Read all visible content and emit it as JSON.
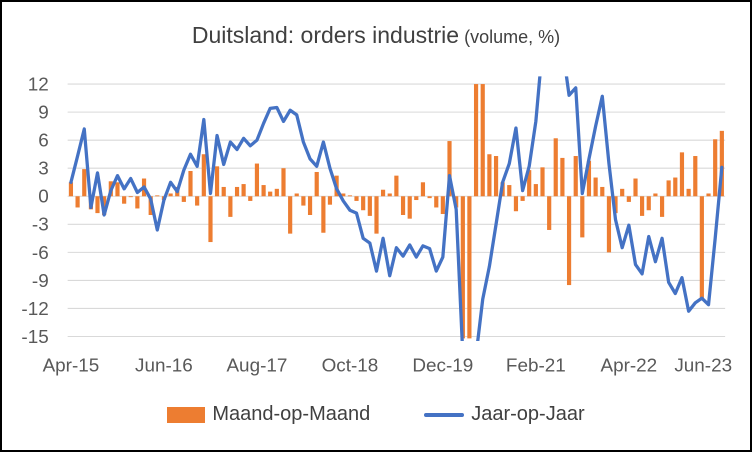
{
  "window": {
    "background": "#ffffff",
    "border_color": "#000000"
  },
  "chart": {
    "title_main": "Duitsland: orders industrie",
    "title_suffix": " (volume, %)"
  },
  "chart_data": {
    "type": "combo",
    "title": "Duitsland: orders industrie (volume, %)",
    "grid": "horizontal",
    "gridline_color": "#D9D9D9",
    "axis_text_color": "#595959",
    "categories": [
      "Apr-15",
      "May-15",
      "Jun-15",
      "Jul-15",
      "Aug-15",
      "Sep-15",
      "Oct-15",
      "Nov-15",
      "Dec-15",
      "Jan-16",
      "Feb-16",
      "Mar-16",
      "Apr-16",
      "May-16",
      "Jun-16",
      "Jul-16",
      "Aug-16",
      "Sep-16",
      "Oct-16",
      "Nov-16",
      "Dec-16",
      "Jan-17",
      "Feb-17",
      "Mar-17",
      "Apr-17",
      "May-17",
      "Jun-17",
      "Jul-17",
      "Aug-17",
      "Sep-17",
      "Oct-17",
      "Nov-17",
      "Dec-17",
      "Jan-18",
      "Feb-18",
      "Mar-18",
      "Apr-18",
      "May-18",
      "Jun-18",
      "Jul-18",
      "Aug-18",
      "Sep-18",
      "Oct-18",
      "Nov-18",
      "Dec-18",
      "Jan-19",
      "Feb-19",
      "Mar-19",
      "Apr-19",
      "May-19",
      "Jun-19",
      "Jul-19",
      "Aug-19",
      "Sep-19",
      "Oct-19",
      "Nov-19",
      "Dec-19",
      "Jan-20",
      "Feb-20",
      "Mar-20",
      "Apr-20",
      "May-20",
      "Jun-20",
      "Jul-20",
      "Aug-20",
      "Sep-20",
      "Oct-20",
      "Nov-20",
      "Dec-20",
      "Jan-21",
      "Feb-21",
      "Mar-21",
      "Apr-21",
      "May-21",
      "Jun-21",
      "Jul-21",
      "Aug-21",
      "Sep-21",
      "Oct-21",
      "Nov-21",
      "Dec-21",
      "Jan-22",
      "Feb-22",
      "Mar-22",
      "Apr-22",
      "May-22",
      "Jun-22",
      "Jul-22",
      "Aug-22",
      "Sep-22",
      "Oct-22",
      "Nov-22",
      "Dec-22",
      "Jan-23",
      "Feb-23",
      "Mar-23",
      "Apr-23",
      "May-23",
      "Jun-23"
    ],
    "series": [
      {
        "name": "Maand-op-Maand",
        "type": "bar",
        "color": "#ED7D31",
        "values": [
          1.5,
          -1.2,
          2.9,
          -1.4,
          -1.8,
          -2.0,
          1.6,
          1.5,
          -0.8,
          -0.1,
          -1.3,
          1.9,
          -2.0,
          0.1,
          -0.4,
          0.3,
          1.0,
          -0.6,
          2.7,
          -1.0,
          4.5,
          -4.9,
          3.2,
          1.0,
          -2.2,
          1.0,
          1.3,
          -0.5,
          3.5,
          1.2,
          0.5,
          0.8,
          3.0,
          -4.0,
          0.3,
          -1.0,
          -2.0,
          2.6,
          -3.9,
          -0.9,
          2.2,
          0.3,
          0.1,
          -0.5,
          -1.5,
          -2.1,
          -4.0,
          0.7,
          0.3,
          2.2,
          -2.0,
          -2.4,
          -0.4,
          1.5,
          -0.2,
          -1.2,
          -1.9,
          5.9,
          -1.2,
          -15.2,
          -15.2,
          12.0,
          12.0,
          4.5,
          4.3,
          1.5,
          1.2,
          -1.6,
          -0.5,
          2.8,
          1.3,
          3.1,
          -3.6,
          6.2,
          4.1,
          -9.5,
          4.3,
          -4.4,
          3.8,
          2.0,
          1.0,
          -6.0,
          -1.8,
          0.8,
          -0.6,
          1.9,
          -2.1,
          -1.5,
          0.3,
          -2.2,
          1.7,
          2.0,
          4.7,
          0.8,
          4.3,
          -11.0,
          0.3,
          6.1,
          7.0
        ]
      },
      {
        "name": "Jaar-op-Jaar",
        "type": "line",
        "color": "#4472C4",
        "values": [
          1.5,
          4.3,
          7.2,
          -1.2,
          2.5,
          -2.0,
          0.6,
          2.2,
          0.8,
          1.9,
          0.4,
          1.0,
          -0.3,
          -3.6,
          -0.4,
          1.5,
          0.5,
          2.8,
          4.5,
          3.2,
          8.2,
          0.3,
          6.5,
          3.4,
          5.8,
          5.0,
          6.2,
          5.4,
          6.0,
          7.8,
          9.4,
          9.5,
          8.0,
          9.2,
          8.7,
          5.8,
          4.0,
          3.2,
          5.8,
          3.0,
          0.8,
          -0.5,
          -1.5,
          -1.8,
          -4.5,
          -5.0,
          -8.0,
          -4.5,
          -8.5,
          -5.5,
          -6.4,
          -5.2,
          -6.5,
          -5.3,
          -5.6,
          -8.0,
          -6.5,
          2.2,
          -1.4,
          -17.0,
          -25.0,
          -17.0,
          -11.0,
          -7.5,
          -3.0,
          1.5,
          3.5,
          7.3,
          0.6,
          3.2,
          8.0,
          16.0,
          16.0,
          16.0,
          16.0,
          10.8,
          11.6,
          0.3,
          4.0,
          7.5,
          10.7,
          3.5,
          -2.5,
          -5.5,
          -3.1,
          -7.3,
          -8.3,
          -4.3,
          -7.0,
          -4.5,
          -9.2,
          -10.4,
          -8.7,
          -12.3,
          -11.4,
          -10.9,
          -11.6,
          -4.5,
          3.1
        ]
      }
    ],
    "y_axis": {
      "min": -15,
      "max": 12,
      "ticks": [
        12,
        9,
        6,
        3,
        0,
        -3,
        -6,
        -9,
        -12,
        -15
      ]
    },
    "x_axis": {
      "tick_labels": [
        "Apr-15",
        "Jun-16",
        "Aug-17",
        "Oct-18",
        "Dec-19",
        "Feb-21",
        "Apr-22",
        "Jun-23"
      ],
      "tick_indexes": [
        0,
        14,
        28,
        42,
        56,
        70,
        84,
        98
      ]
    },
    "legend": {
      "position": "bottom",
      "entries": [
        "Maand-op-Maand",
        "Jaar-op-Jaar"
      ]
    },
    "clipping_note": "Series values outside the -15..12 axis range (Covid collapse in spring 2020 and the 2021 rebound) are clipped at the plot-area edges in the image; clipped points are stored at out-of-range placeholder values."
  }
}
